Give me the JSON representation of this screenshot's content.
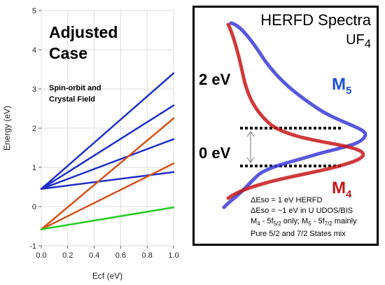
{
  "left_panel": {
    "title_line1": "Adjusted",
    "title_line2": "Case",
    "subtitle_line1": "Spin-orbit and",
    "subtitle_line2": "Crystal Field"
  },
  "right_panel": {
    "title_line1": "HERFD Spectra",
    "title_line2_base": "UF",
    "title_line2_sub": "4",
    "label_2ev": "2 eV",
    "label_0ev": "0 eV",
    "m5_base": "M",
    "m5_sub": "5",
    "m4_base": "M",
    "m4_sub": "4",
    "note1": "ΔEso = 1 eV HERFD",
    "note2": "ΔEso =  ~1 eV in U UDOS/BIS",
    "note3_a": "M",
    "note3_a_sub": "4",
    "note3_b": " - 5f",
    "note3_b_sub": "5/2",
    "note3_c": " only;  M",
    "note3_c_sub": "5",
    "note3_d": " - 5f",
    "note3_d_sub": "7/2",
    "note3_e": " mainly",
    "note4": "Pure 5/2 and 7/2 States mix",
    "colors": {
      "m5": "#1f4fd6",
      "m4": "#c01818"
    }
  },
  "chart_data": {
    "type": "line",
    "xlabel": "Ecf (eV)",
    "ylabel": "Energy (eV)",
    "xlim": [
      0.0,
      1.0
    ],
    "ylim": [
      -1,
      5
    ],
    "x_ticks": [
      "0.0",
      "0.2",
      "0.4",
      "0.6",
      "0.8",
      "1.0"
    ],
    "y_ticks": [
      "-1",
      "0",
      "1",
      "2",
      "3",
      "4",
      "5"
    ],
    "grid": true,
    "series": [
      {
        "x": [
          0,
          1
        ],
        "y": [
          0.45,
          3.4
        ],
        "color": "#1f2fc8"
      },
      {
        "x": [
          0,
          1
        ],
        "y": [
          0.45,
          2.58
        ],
        "color": "#1f2fc8"
      },
      {
        "x": [
          0,
          1
        ],
        "y": [
          0.45,
          1.72
        ],
        "color": "#1f2fc8"
      },
      {
        "x": [
          0,
          1
        ],
        "y": [
          0.45,
          0.88
        ],
        "color": "#1f2fc8"
      },
      {
        "x": [
          0,
          1
        ],
        "y": [
          -0.58,
          2.25
        ],
        "color": "#d4521a"
      },
      {
        "x": [
          0,
          1
        ],
        "y": [
          -0.58,
          1.1
        ],
        "color": "#d4521a"
      },
      {
        "x": [
          0,
          1
        ],
        "y": [
          -0.58,
          -0.02
        ],
        "color": "#22cc22"
      }
    ]
  }
}
